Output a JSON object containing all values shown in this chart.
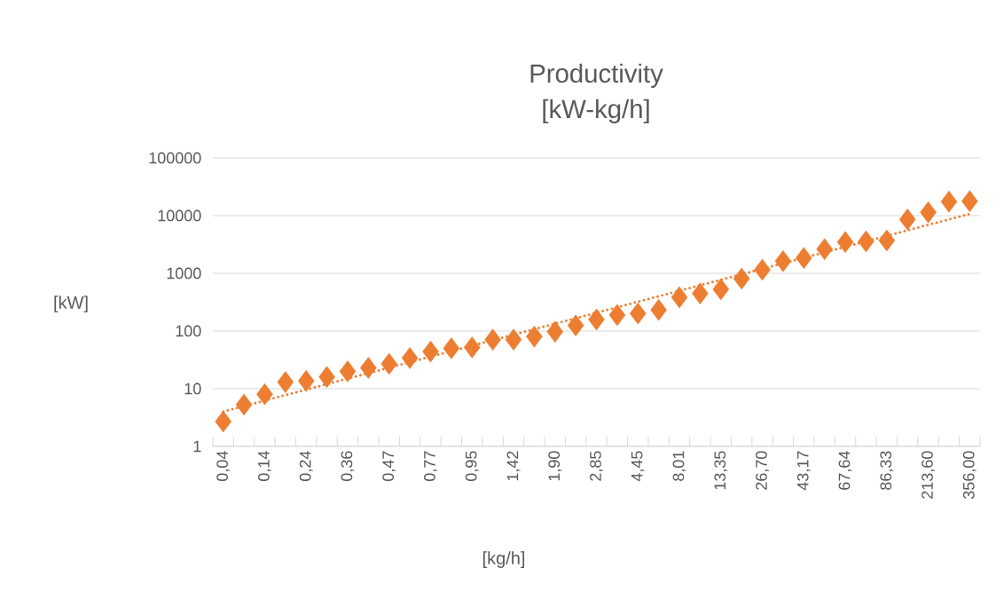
{
  "chart_data": {
    "type": "scatter",
    "title": "Productivity",
    "subtitle": "[kW-kg/h]",
    "xlabel": "[kg/h]",
    "ylabel": "[kW]",
    "categories": [
      "0,04",
      null,
      "0,14",
      null,
      "0,24",
      null,
      "0,36",
      null,
      "0,47",
      null,
      "0,77",
      null,
      "0,95",
      null,
      "1,42",
      null,
      "1,90",
      null,
      "2,85",
      null,
      "4,45",
      null,
      "8,01",
      null,
      "13,35",
      null,
      "26,70",
      null,
      "43,17",
      null,
      "67,64",
      null,
      "86,33",
      null,
      "213,60",
      null,
      "356,00"
    ],
    "series": [
      {
        "color": "#ed7d31",
        "marker": "diamond",
        "values": [
          2.7,
          5.3,
          8.0,
          13,
          13.6,
          16,
          20,
          23,
          27,
          34,
          44,
          50,
          52,
          71,
          71,
          80,
          97,
          125,
          158,
          189,
          201,
          232,
          384,
          448,
          529,
          809,
          1150,
          1630,
          1850,
          2630,
          3490,
          3580,
          3710,
          8590,
          11400,
          17500,
          17800
        ]
      },
      {
        "type": "line",
        "color": "#ed7d31",
        "line_style": "dotted",
        "marker": "none",
        "x": [
          "0,04",
          "356,00"
        ],
        "values": [
          4,
          10700
        ]
      }
    ],
    "log": "y",
    "ylim": [
      1,
      100000
    ],
    "yticks": [
      1,
      10,
      100,
      1000,
      10000,
      100000
    ],
    "grid": "y"
  }
}
